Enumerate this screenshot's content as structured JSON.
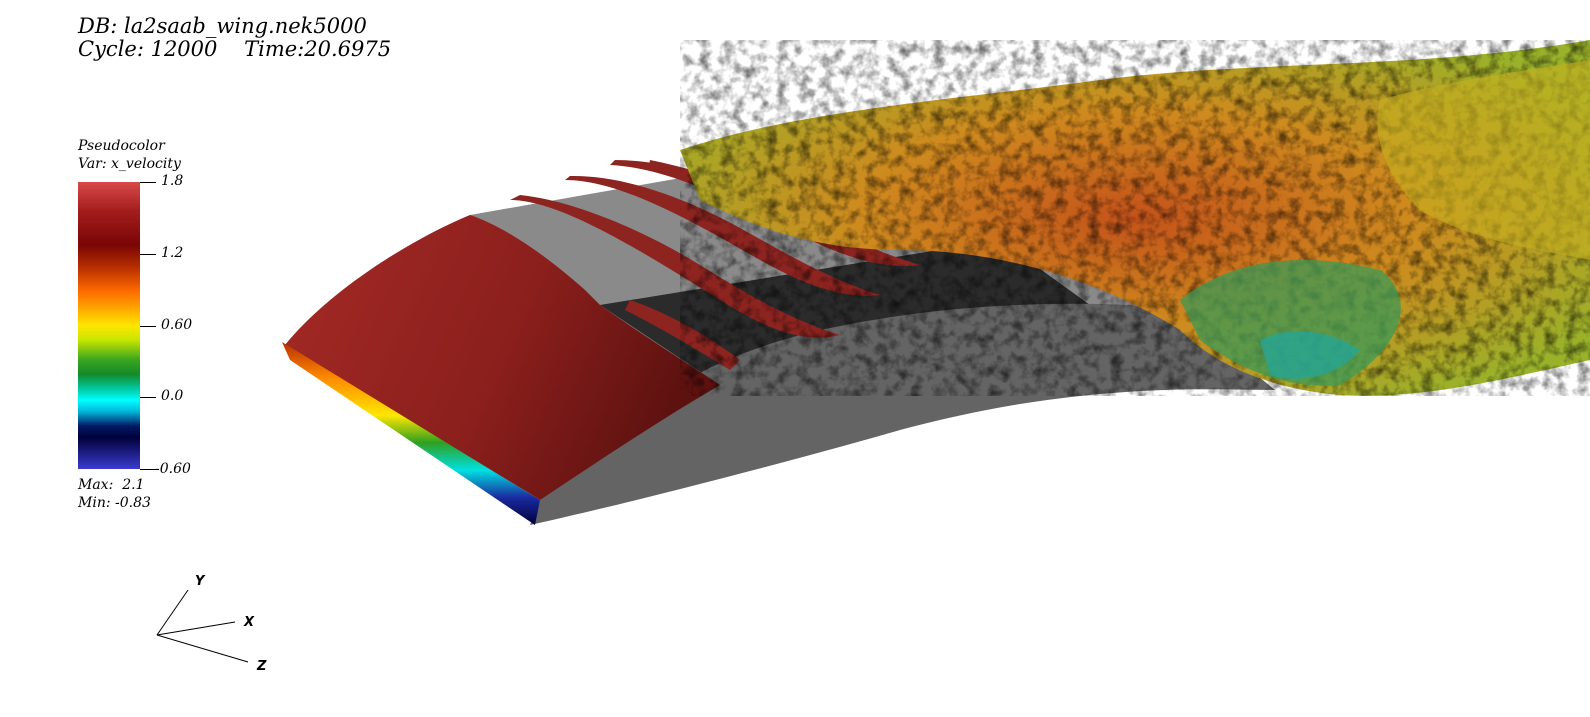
{
  "header": {
    "db_label": "DB: la2saab_wing.nek5000",
    "cycle_label": "Cycle: 12000    Time:20.6975"
  },
  "legend": {
    "title": "Pseudocolor",
    "variable": "Var: x_velocity",
    "ticks": [
      "1.8",
      "1.2",
      "0.60",
      "0.0",
      "-0.60"
    ],
    "max_label": "Max:  2.1",
    "min_label": "Min: -0.83"
  },
  "axes": {
    "x_label": "X",
    "y_label": "Y",
    "z_label": "Z"
  },
  "colors": {
    "wing_surface": "#646464",
    "wing_top": "#8a8a8a",
    "leading_edge_red": "#8e2420",
    "turbulent_orange": "#c85a10",
    "turbulent_yellow": "#d6b020",
    "turbulent_green": "#6aa02a",
    "turbulent_cyan": "#1fa7a0"
  }
}
